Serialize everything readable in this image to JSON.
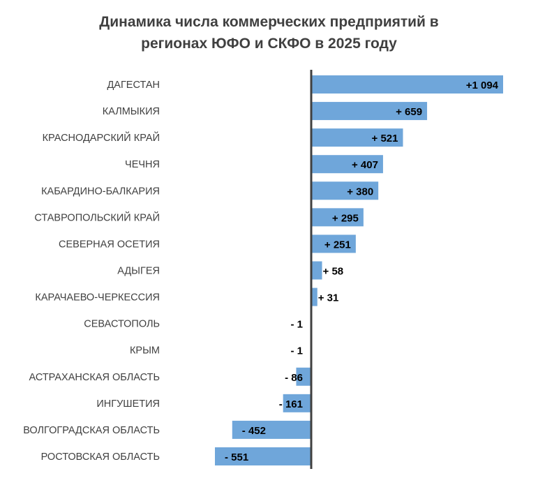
{
  "chart_data": {
    "type": "bar",
    "orientation": "horizontal",
    "title": "Динамика числа коммерческих предприятий в регионах ЮФО и СКФО в 2025 году",
    "title_lines": [
      "Динамика числа коммерческих предприятий в",
      "регионах ЮФО и СКФО в 2025 году"
    ],
    "categories": [
      "ДАГЕСТАН",
      "КАЛМЫКИЯ",
      "КРАСНОДАРСКИЙ КРАЙ",
      "ЧЕЧНЯ",
      "КАБАРДИНО-БАЛКАРИЯ",
      "СТАВРОПОЛЬСКИЙ КРАЙ",
      "СЕВЕРНАЯ ОСЕТИЯ",
      "АДЫГЕЯ",
      "КАРАЧАЕВО-ЧЕРКЕССИЯ",
      "СЕВАСТОПОЛЬ",
      "КРЫМ",
      "АСТРАХАНСКАЯ ОБЛАСТЬ",
      "ИНГУШЕТИЯ",
      "ВОЛГОГРАДСКАЯ ОБЛАСТЬ",
      "РОСТОВСКАЯ ОБЛАСТЬ"
    ],
    "values": [
      1094,
      659,
      521,
      407,
      380,
      295,
      251,
      58,
      31,
      -1,
      -1,
      -86,
      -161,
      -452,
      -551
    ],
    "data_labels": [
      "+1 094",
      "+ 659",
      "+ 521",
      "+ 407",
      "+ 380",
      "+ 295",
      "+ 251",
      "+ 58",
      "+ 31",
      "- 1",
      "- 1",
      "- 86",
      "- 161",
      "- 452",
      "- 551"
    ],
    "xlim": [
      -551,
      1094
    ],
    "grid": false,
    "bar_color": "#6fa6da",
    "axis_color": "#404040"
  }
}
